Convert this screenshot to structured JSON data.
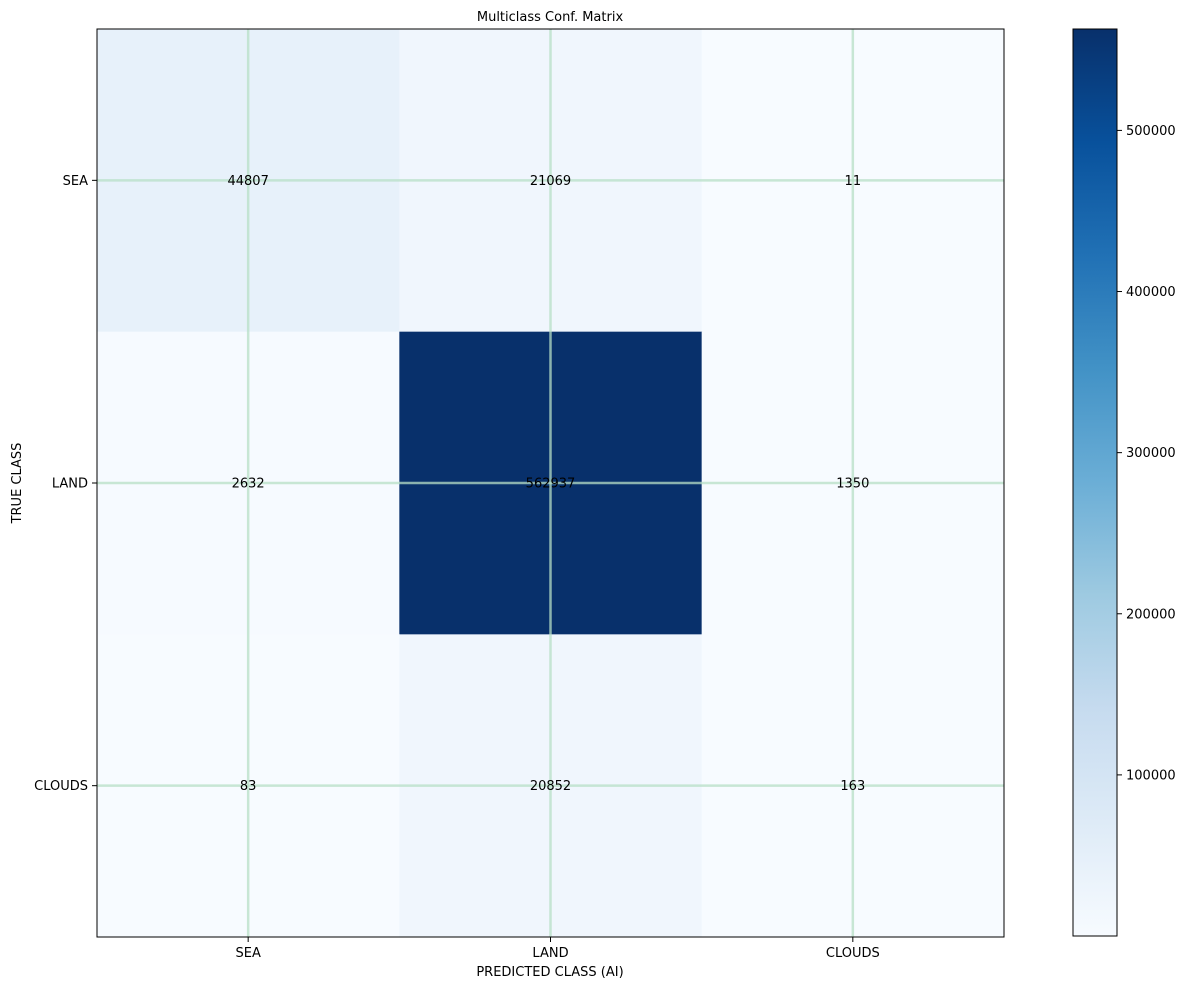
{
  "chart_data": {
    "type": "heatmap",
    "title": "Multiclass Conf. Matrix",
    "xlabel": "PREDICTED CLASS (AI)",
    "ylabel": "TRUE CLASS",
    "x_categories": [
      "SEA",
      "LAND",
      "CLOUDS"
    ],
    "y_categories": [
      "SEA",
      "LAND",
      "CLOUDS"
    ],
    "values": [
      [
        44807,
        21069,
        11
      ],
      [
        2632,
        562937,
        1350
      ],
      [
        83,
        20852,
        163
      ]
    ],
    "colormap": "Blues",
    "colorbar": {
      "min": 11,
      "max": 562937,
      "ticks": [
        100000,
        200000,
        300000,
        400000,
        500000
      ],
      "tick_labels": [
        "100000",
        "200000",
        "300000",
        "400000",
        "500000"
      ]
    },
    "grid": true,
    "grid_color": "#b7dfc5"
  }
}
